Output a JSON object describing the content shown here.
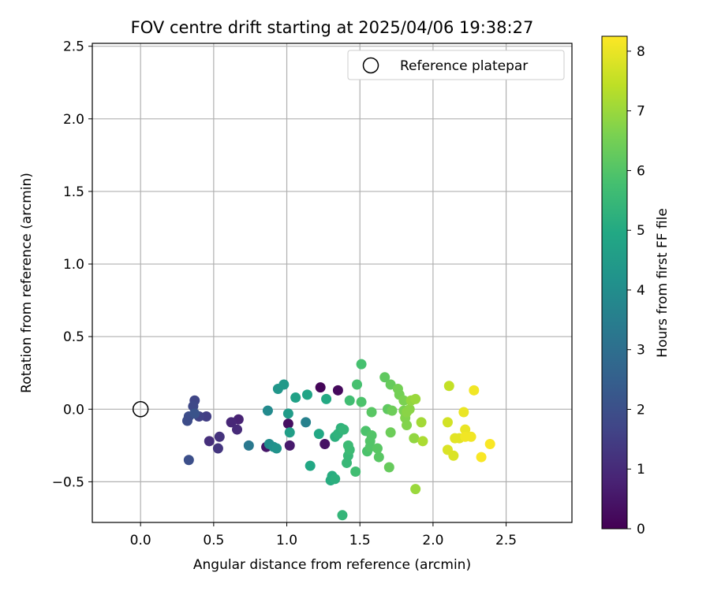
{
  "chart_data": {
    "type": "scatter",
    "title": "FOV centre drift starting at 2025/04/06 19:38:27",
    "xlabel": "Angular distance from reference (arcmin)",
    "ylabel": "Rotation from reference (arcmin)",
    "xlim": [
      -0.33,
      2.95
    ],
    "ylim": [
      -0.78,
      2.52
    ],
    "xticks": [
      "0.0",
      "0.5",
      "1.0",
      "1.5",
      "2.0",
      "2.5"
    ],
    "xtick_values": [
      0,
      0.5,
      1.0,
      1.5,
      2.0,
      2.5
    ],
    "yticks": [
      "−0.5",
      "0.0",
      "0.5",
      "1.0",
      "1.5",
      "2.0",
      "2.5"
    ],
    "ytick_values": [
      -0.5,
      0,
      0.5,
      1.0,
      1.5,
      2.0,
      2.5
    ],
    "grid": true,
    "legend": {
      "placement": "top-right",
      "entries": [
        "Reference platepar"
      ]
    },
    "reference_point": {
      "x": 0.0,
      "y": 0.0,
      "label": "Reference platepar"
    },
    "colorbar": {
      "label": "Hours from first FF file",
      "colormap": "viridis",
      "range": [
        0,
        8.25
      ],
      "ticks": [
        "0",
        "1",
        "2",
        "3",
        "4",
        "5",
        "6",
        "7",
        "8"
      ],
      "tick_values": [
        0,
        1,
        2,
        3,
        4,
        5,
        6,
        7,
        8
      ]
    },
    "series": [
      {
        "color_key": "hours",
        "points": [
          {
            "x": 1.23,
            "y": 0.15,
            "c": 0.1
          },
          {
            "x": 1.35,
            "y": 0.13,
            "c": 0.2
          },
          {
            "x": 1.01,
            "y": -0.1,
            "c": 0.3
          },
          {
            "x": 1.26,
            "y": -0.24,
            "c": 0.4
          },
          {
            "x": 0.86,
            "y": -0.26,
            "c": 0.5
          },
          {
            "x": 1.02,
            "y": -0.25,
            "c": 0.6
          },
          {
            "x": 0.67,
            "y": -0.07,
            "c": 0.8
          },
          {
            "x": 0.62,
            "y": -0.09,
            "c": 0.9
          },
          {
            "x": 0.66,
            "y": -0.14,
            "c": 1.0
          },
          {
            "x": 0.47,
            "y": -0.22,
            "c": 1.1
          },
          {
            "x": 0.54,
            "y": -0.19,
            "c": 1.2
          },
          {
            "x": 0.53,
            "y": -0.27,
            "c": 1.3
          },
          {
            "x": 0.45,
            "y": -0.05,
            "c": 1.5
          },
          {
            "x": 0.4,
            "y": -0.05,
            "c": 1.6
          },
          {
            "x": 0.37,
            "y": 0.06,
            "c": 1.7
          },
          {
            "x": 0.36,
            "y": 0.02,
            "c": 1.8
          },
          {
            "x": 0.32,
            "y": -0.08,
            "c": 1.9
          },
          {
            "x": 0.33,
            "y": -0.05,
            "c": 1.9
          },
          {
            "x": 0.33,
            "y": -0.35,
            "c": 2.0
          },
          {
            "x": 0.37,
            "y": -0.03,
            "c": 2.1
          },
          {
            "x": 0.74,
            "y": -0.25,
            "c": 3.3
          },
          {
            "x": 1.13,
            "y": -0.09,
            "c": 3.6
          },
          {
            "x": 0.87,
            "y": -0.01,
            "c": 3.9
          },
          {
            "x": 0.88,
            "y": -0.24,
            "c": 4.0
          },
          {
            "x": 0.91,
            "y": -0.26,
            "c": 4.1
          },
          {
            "x": 0.93,
            "y": -0.27,
            "c": 4.2
          },
          {
            "x": 0.94,
            "y": 0.14,
            "c": 4.3
          },
          {
            "x": 0.98,
            "y": 0.17,
            "c": 4.4
          },
          {
            "x": 1.01,
            "y": -0.03,
            "c": 4.5
          },
          {
            "x": 1.02,
            "y": -0.16,
            "c": 4.6
          },
          {
            "x": 1.06,
            "y": 0.08,
            "c": 4.7
          },
          {
            "x": 1.14,
            "y": 0.1,
            "c": 4.8
          },
          {
            "x": 1.16,
            "y": -0.39,
            "c": 4.9
          },
          {
            "x": 1.22,
            "y": -0.17,
            "c": 4.9
          },
          {
            "x": 1.27,
            "y": 0.07,
            "c": 5.0
          },
          {
            "x": 1.3,
            "y": -0.49,
            "c": 5.1
          },
          {
            "x": 1.31,
            "y": -0.46,
            "c": 5.1
          },
          {
            "x": 1.33,
            "y": -0.48,
            "c": 5.2
          },
          {
            "x": 1.33,
            "y": -0.19,
            "c": 5.2
          },
          {
            "x": 1.35,
            "y": -0.17,
            "c": 5.3
          },
          {
            "x": 1.37,
            "y": -0.13,
            "c": 5.3
          },
          {
            "x": 1.38,
            "y": -0.73,
            "c": 5.4
          },
          {
            "x": 1.39,
            "y": -0.14,
            "c": 5.4
          },
          {
            "x": 1.41,
            "y": -0.37,
            "c": 5.5
          },
          {
            "x": 1.42,
            "y": -0.32,
            "c": 5.5
          },
          {
            "x": 1.43,
            "y": -0.28,
            "c": 5.6
          },
          {
            "x": 1.42,
            "y": -0.25,
            "c": 5.6
          },
          {
            "x": 1.43,
            "y": 0.06,
            "c": 5.7
          },
          {
            "x": 1.47,
            "y": -0.43,
            "c": 5.7
          },
          {
            "x": 1.48,
            "y": 0.17,
            "c": 5.8
          },
          {
            "x": 1.51,
            "y": 0.31,
            "c": 5.8
          },
          {
            "x": 1.51,
            "y": 0.05,
            "c": 5.9
          },
          {
            "x": 1.54,
            "y": -0.15,
            "c": 5.9
          },
          {
            "x": 1.55,
            "y": -0.29,
            "c": 5.9
          },
          {
            "x": 1.57,
            "y": -0.26,
            "c": 6.0
          },
          {
            "x": 1.57,
            "y": -0.22,
            "c": 6.0
          },
          {
            "x": 1.58,
            "y": -0.18,
            "c": 6.0
          },
          {
            "x": 1.58,
            "y": -0.02,
            "c": 6.1
          },
          {
            "x": 1.62,
            "y": -0.27,
            "c": 6.1
          },
          {
            "x": 1.63,
            "y": -0.33,
            "c": 6.1
          },
          {
            "x": 1.67,
            "y": 0.22,
            "c": 6.2
          },
          {
            "x": 1.69,
            "y": 0.0,
            "c": 6.2
          },
          {
            "x": 1.7,
            "y": -0.4,
            "c": 6.3
          },
          {
            "x": 1.71,
            "y": 0.17,
            "c": 6.3
          },
          {
            "x": 1.71,
            "y": -0.16,
            "c": 6.4
          },
          {
            "x": 1.72,
            "y": -0.01,
            "c": 6.4
          },
          {
            "x": 1.76,
            "y": 0.14,
            "c": 6.5
          },
          {
            "x": 1.77,
            "y": 0.1,
            "c": 6.5
          },
          {
            "x": 1.8,
            "y": 0.06,
            "c": 6.6
          },
          {
            "x": 1.8,
            "y": -0.01,
            "c": 6.6
          },
          {
            "x": 1.81,
            "y": -0.06,
            "c": 6.7
          },
          {
            "x": 1.82,
            "y": -0.11,
            "c": 6.7
          },
          {
            "x": 1.82,
            "y": -0.02,
            "c": 6.8
          },
          {
            "x": 1.84,
            "y": 0.0,
            "c": 6.8
          },
          {
            "x": 1.85,
            "y": 0.06,
            "c": 6.9
          },
          {
            "x": 1.87,
            "y": -0.2,
            "c": 6.9
          },
          {
            "x": 1.88,
            "y": 0.07,
            "c": 7.0
          },
          {
            "x": 1.88,
            "y": -0.55,
            "c": 7.0
          },
          {
            "x": 1.92,
            "y": -0.09,
            "c": 7.1
          },
          {
            "x": 1.93,
            "y": -0.22,
            "c": 7.2
          },
          {
            "x": 2.11,
            "y": 0.16,
            "c": 7.5
          },
          {
            "x": 2.1,
            "y": -0.09,
            "c": 7.7
          },
          {
            "x": 2.1,
            "y": -0.28,
            "c": 7.8
          },
          {
            "x": 2.14,
            "y": -0.32,
            "c": 7.8
          },
          {
            "x": 2.15,
            "y": -0.2,
            "c": 7.9
          },
          {
            "x": 2.18,
            "y": -0.2,
            "c": 7.9
          },
          {
            "x": 2.21,
            "y": -0.02,
            "c": 8.0
          },
          {
            "x": 2.22,
            "y": -0.14,
            "c": 8.0
          },
          {
            "x": 2.22,
            "y": -0.19,
            "c": 8.1
          },
          {
            "x": 2.26,
            "y": -0.19,
            "c": 8.1
          },
          {
            "x": 2.28,
            "y": 0.13,
            "c": 8.1
          },
          {
            "x": 2.33,
            "y": -0.33,
            "c": 8.2
          },
          {
            "x": 2.39,
            "y": -0.24,
            "c": 8.2
          }
        ]
      }
    ]
  }
}
